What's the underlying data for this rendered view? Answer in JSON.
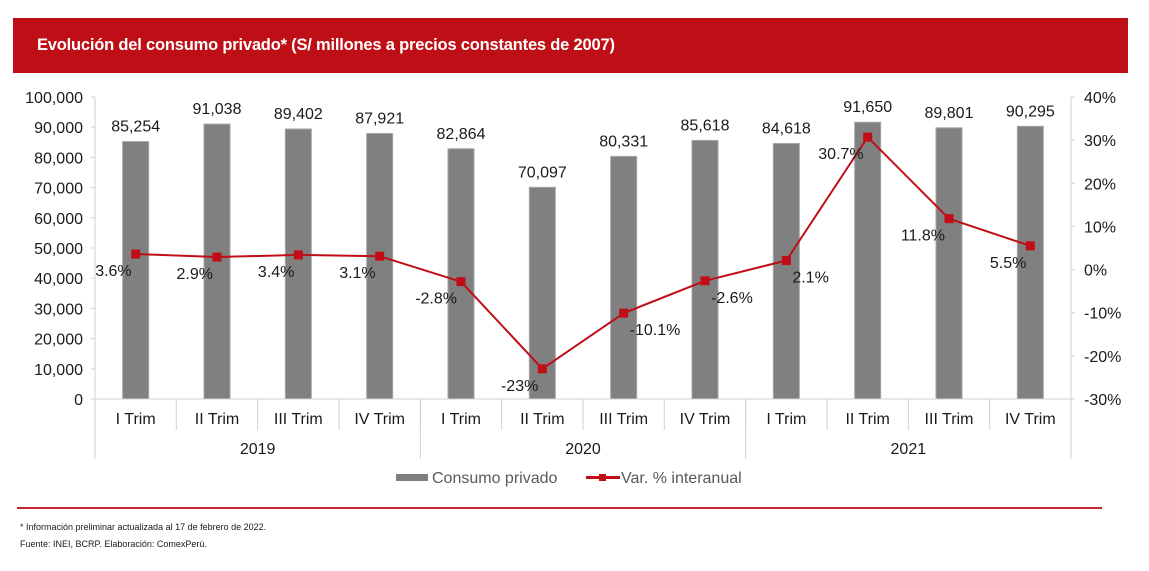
{
  "header": {
    "title": "Evolución del consumo privado* (S/ millones a precios constantes de 2007)",
    "background_color": "#be0f17"
  },
  "chart_data": {
    "type": "bar",
    "title": "Evolución del consumo privado* (S/ millones a precios constantes de 2007)",
    "categories": [
      "I Trim",
      "II Trim",
      "III Trim",
      "IV Trim",
      "I Trim",
      "II Trim",
      "III Trim",
      "IV Trim",
      "I Trim",
      "II Trim",
      "III Trim",
      "IV Trim"
    ],
    "groups": [
      {
        "label": "2019",
        "count": 4
      },
      {
        "label": "2020",
        "count": 4
      },
      {
        "label": "2021",
        "count": 4
      }
    ],
    "series": [
      {
        "name": "Consumo privado",
        "type": "bar",
        "axis": "left",
        "color": "#808080",
        "values": [
          85254,
          91038,
          89402,
          87921,
          82864,
          70097,
          80331,
          85618,
          84618,
          91650,
          89801,
          90295
        ],
        "labels": [
          "85,254",
          "91,038",
          "89,402",
          "87,921",
          "82,864",
          "70,097",
          "80,331",
          "85,618",
          "84,618",
          "91,650",
          "89,801",
          "90,295"
        ]
      },
      {
        "name": "Var. % interanual",
        "type": "line",
        "axis": "right",
        "color": "#c00d16",
        "values": [
          3.6,
          2.9,
          3.4,
          3.1,
          -2.8,
          -23.0,
          -10.1,
          -2.6,
          2.1,
          30.7,
          11.8,
          5.5
        ],
        "labels": [
          "3.6%",
          "2.9%",
          "3.4%",
          "3.1%",
          "-2.8%",
          "-23%",
          "-10.1%",
          "-2.6%",
          "2.1%",
          "30.7%",
          "11.8%",
          "5.5%"
        ],
        "label_side": [
          "left",
          "left",
          "left",
          "left",
          "left",
          "left",
          "right",
          "right",
          "right",
          "left",
          "left",
          "left"
        ]
      }
    ],
    "left_axis": {
      "ylim": [
        0,
        100000
      ],
      "ticks": [
        0,
        10000,
        20000,
        30000,
        40000,
        50000,
        60000,
        70000,
        80000,
        90000,
        100000
      ],
      "tick_labels": [
        "0",
        "10,000",
        "20,000",
        "30,000",
        "40,000",
        "50,000",
        "60,000",
        "70,000",
        "80,000",
        "90,000",
        "100,000"
      ]
    },
    "right_axis": {
      "ylim": [
        -30,
        40
      ],
      "ticks": [
        -30,
        -20,
        -10,
        0,
        10,
        20,
        30,
        40
      ],
      "tick_labels": [
        "-30%",
        "-20%",
        "-10%",
        "0%",
        "10%",
        "20%",
        "30%",
        "40%"
      ]
    },
    "xlabel": "",
    "ylabel": "",
    "grid": false,
    "legend": {
      "placement": "bottom-center",
      "entries": [
        "Consumo privado",
        "Var. % interanual"
      ]
    }
  },
  "footer": {
    "note": "* Información preliminar actualizada al 17 de febrero de 2022.",
    "source": "Fuente: INEI, BCRP. Elaboración: ComexPerú."
  }
}
